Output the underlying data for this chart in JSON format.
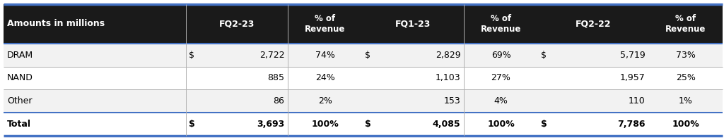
{
  "header": [
    "Amounts in millions",
    "FQ2-23",
    "% of\nRevenue",
    "FQ1-23",
    "% of\nRevenue",
    "FQ2-22",
    "% of\nRevenue"
  ],
  "rows": [
    [
      "DRAM",
      "$",
      "2,722",
      "74%",
      "$",
      "2,829",
      "69%",
      "$",
      "5,719",
      "73%"
    ],
    [
      "NAND",
      "",
      "885",
      "24%",
      "",
      "1,103",
      "27%",
      "",
      "1,957",
      "25%"
    ],
    [
      "Other",
      "",
      "86",
      "2%",
      "",
      "153",
      "4%",
      "",
      "110",
      "1%"
    ],
    [
      "Total",
      "$",
      "3,693",
      "100%",
      "$",
      "4,085",
      "100%",
      "$",
      "7,786",
      "100%"
    ]
  ],
  "header_bg": "#1a1a1a",
  "header_fg": "#ffffff",
  "row_bg_odd": "#f2f2f2",
  "row_bg_even": "#ffffff",
  "border_color": "#4472c4",
  "inner_border_color": "#b0b0b0",
  "font_size": 9.0,
  "header_font_size": 9.0
}
